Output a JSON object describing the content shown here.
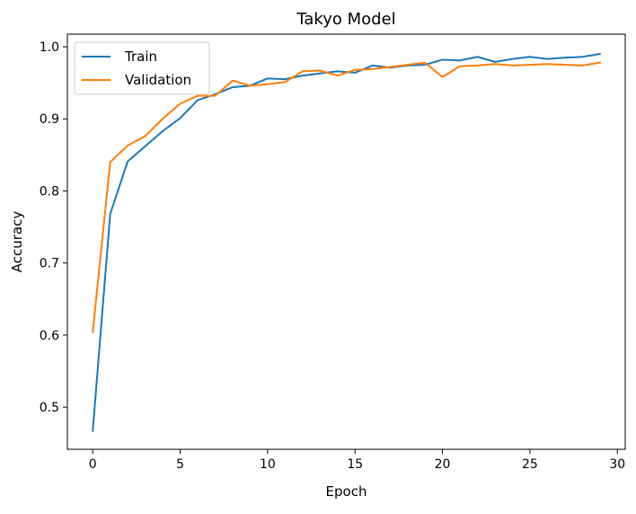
{
  "chart_data": {
    "type": "line",
    "title": "Takyo Model",
    "xlabel": "Epoch",
    "ylabel": "Accuracy",
    "xlim": [
      -1.45,
      30.45
    ],
    "ylim": [
      0.4415,
      1.0175
    ],
    "xticks": [
      0,
      5,
      10,
      15,
      20,
      25,
      30
    ],
    "yticks": [
      0.5,
      0.6,
      0.7,
      0.8,
      0.9,
      1.0
    ],
    "grid": false,
    "legend_position": "upper left",
    "x": [
      0,
      1,
      2,
      3,
      4,
      5,
      6,
      7,
      8,
      9,
      10,
      11,
      12,
      13,
      14,
      15,
      16,
      17,
      18,
      19,
      20,
      21,
      22,
      23,
      24,
      25,
      26,
      27,
      28,
      29
    ],
    "series": [
      {
        "name": "Train",
        "color": "#1f77b4",
        "values": [
          0.467,
          0.768,
          0.841,
          0.862,
          0.883,
          0.901,
          0.926,
          0.934,
          0.944,
          0.946,
          0.956,
          0.955,
          0.96,
          0.963,
          0.966,
          0.964,
          0.974,
          0.971,
          0.974,
          0.975,
          0.982,
          0.981,
          0.986,
          0.979,
          0.983,
          0.986,
          0.983,
          0.985,
          0.986,
          0.99
        ]
      },
      {
        "name": "Validation",
        "color": "#ff7f0e",
        "values": [
          0.604,
          0.84,
          0.863,
          0.876,
          0.9,
          0.921,
          0.932,
          0.932,
          0.953,
          0.946,
          0.948,
          0.951,
          0.966,
          0.967,
          0.96,
          0.968,
          0.969,
          0.972,
          0.975,
          0.978,
          0.958,
          0.973,
          0.974,
          0.976,
          0.974,
          0.975,
          0.976,
          0.975,
          0.974,
          0.978
        ]
      }
    ]
  }
}
